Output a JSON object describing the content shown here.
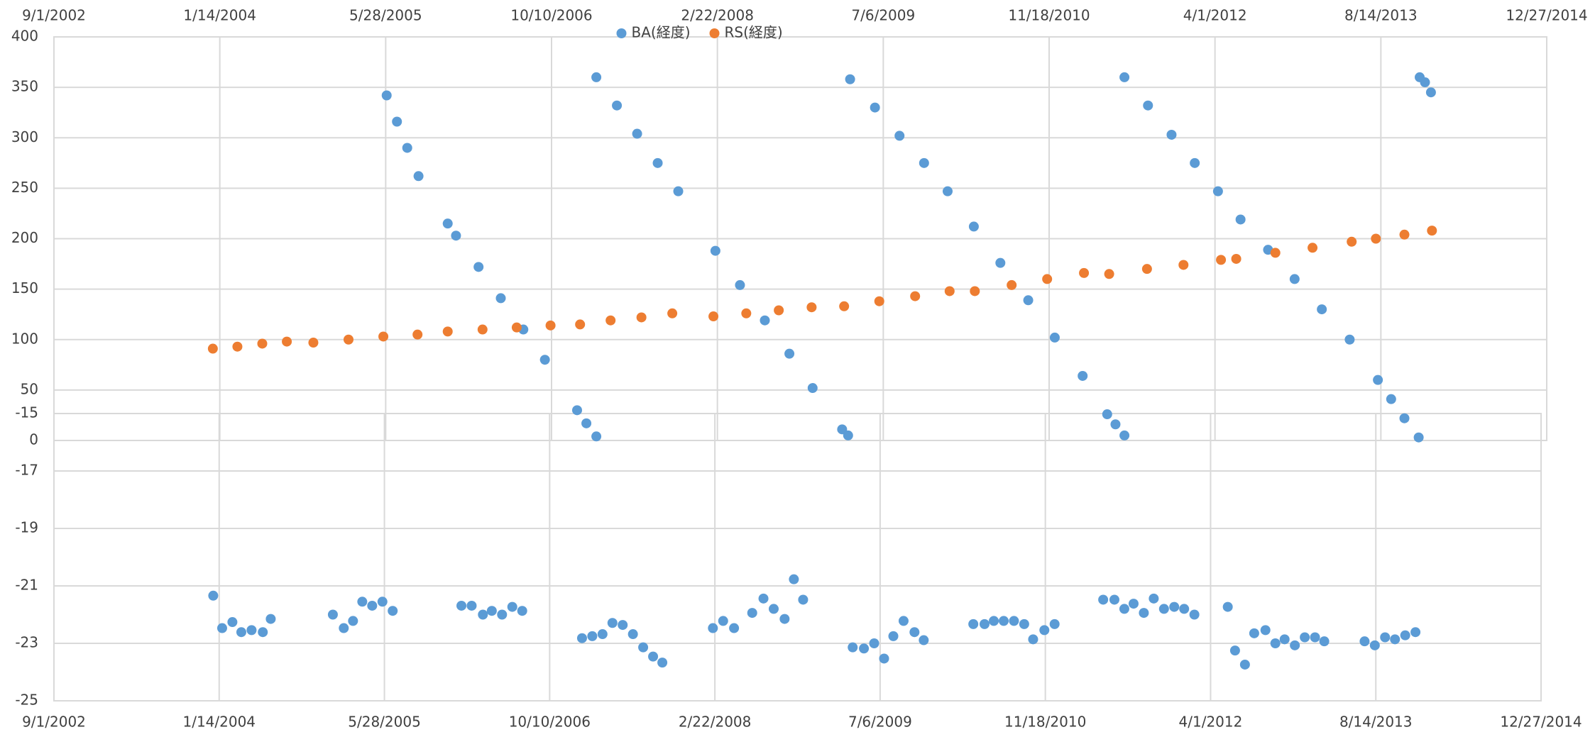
{
  "chart_data": [
    {
      "type": "scatter",
      "xlim": [
        "2002-09-01",
        "2014-12-27"
      ],
      "xticks": [
        {
          "value": "2002-09-01",
          "label": "9/1/2002"
        },
        {
          "value": "2004-01-14",
          "label": "1/14/2004"
        },
        {
          "value": "2005-05-28",
          "label": "5/28/2005"
        },
        {
          "value": "2006-10-10",
          "label": "10/10/2006"
        },
        {
          "value": "2008-02-22",
          "label": "2/22/2008"
        },
        {
          "value": "2009-07-06",
          "label": "7/6/2009"
        },
        {
          "value": "2010-11-18",
          "label": "11/18/2010"
        },
        {
          "value": "2012-04-01",
          "label": "4/1/2012"
        },
        {
          "value": "2013-08-14",
          "label": "8/14/2013"
        },
        {
          "value": "2014-12-27",
          "label": "12/27/2014"
        }
      ],
      "ylim": [
        0,
        400
      ],
      "yticks": [
        0,
        50,
        100,
        150,
        200,
        250,
        300,
        350,
        400
      ],
      "grid": true,
      "legend": "top",
      "series": [
        {
          "name": "BA(経度)",
          "color": "#5b9bd5",
          "x": [
            "2005-05-31",
            "2005-07-01",
            "2005-08-01",
            "2005-09-04",
            "2005-12-01",
            "2005-12-26",
            "2006-03-04",
            "2006-05-10",
            "2006-07-17",
            "2006-09-20",
            "2006-12-26",
            "2007-01-23",
            "2007-02-22",
            "2007-02-22",
            "2007-04-25",
            "2007-06-25",
            "2007-08-26",
            "2007-10-27",
            "2008-02-16",
            "2008-04-30",
            "2008-07-14",
            "2008-09-26",
            "2008-12-05",
            "2009-03-04",
            "2009-03-22",
            "2009-03-28",
            "2009-06-11",
            "2009-08-24",
            "2009-11-06",
            "2010-01-16",
            "2010-04-05",
            "2010-06-24",
            "2010-09-16",
            "2010-12-05",
            "2011-02-27",
            "2011-05-12",
            "2011-06-06",
            "2011-07-03",
            "2011-07-03",
            "2011-09-12",
            "2011-11-22",
            "2012-01-31",
            "2012-04-10",
            "2012-06-17",
            "2012-09-08",
            "2012-11-27",
            "2013-02-17",
            "2013-05-12",
            "2013-08-05",
            "2013-09-14",
            "2013-10-24",
            "2013-12-06",
            "2013-12-09",
            "2013-12-25",
            "2014-01-12"
          ],
          "values": [
            342,
            316,
            290,
            262,
            215,
            203,
            172,
            141,
            110,
            80,
            30,
            17,
            4,
            360,
            332,
            304,
            275,
            247,
            188,
            154,
            119,
            86,
            52,
            11,
            5,
            358,
            330,
            302,
            275,
            247,
            212,
            176,
            139,
            102,
            64,
            26,
            16,
            5,
            360,
            332,
            303,
            275,
            247,
            219,
            189,
            160,
            130,
            100,
            60,
            41,
            22,
            3,
            360,
            355,
            345
          ]
        },
        {
          "name": "RS(経度)",
          "color": "#ed7d31",
          "x": [
            "2003-12-24",
            "2004-03-07",
            "2004-05-21",
            "2004-08-03",
            "2004-10-22",
            "2005-02-05",
            "2005-05-21",
            "2005-09-01",
            "2005-12-01",
            "2006-03-16",
            "2006-06-27",
            "2006-10-07",
            "2007-01-04",
            "2007-04-06",
            "2007-07-08",
            "2007-10-09",
            "2008-02-10",
            "2008-05-19",
            "2008-08-25",
            "2008-12-02",
            "2009-03-10",
            "2009-06-24",
            "2009-10-10",
            "2010-01-22",
            "2010-04-08",
            "2010-07-28",
            "2010-11-12",
            "2011-03-03",
            "2011-05-18",
            "2011-09-09",
            "2011-12-28",
            "2012-04-19",
            "2012-06-04",
            "2012-09-30",
            "2013-01-20",
            "2013-05-18",
            "2013-07-30",
            "2013-10-24",
            "2014-01-15"
          ],
          "values": [
            91,
            93,
            96,
            98,
            97,
            100,
            103,
            105,
            108,
            110,
            112,
            114,
            115,
            119,
            122,
            126,
            123,
            126,
            129,
            132,
            133,
            138,
            143,
            148,
            148,
            154,
            160,
            166,
            165,
            170,
            174,
            179,
            180,
            186,
            191,
            197,
            200,
            204,
            208
          ]
        }
      ]
    },
    {
      "type": "scatter",
      "xlim": [
        "2002-09-01",
        "2014-12-27"
      ],
      "xticks": [
        {
          "value": "2002-09-01",
          "label": "9/1/2002"
        },
        {
          "value": "2004-01-14",
          "label": "1/14/2004"
        },
        {
          "value": "2005-05-28",
          "label": "5/28/2005"
        },
        {
          "value": "2006-10-10",
          "label": "10/10/2006"
        },
        {
          "value": "2008-02-22",
          "label": "2/22/2008"
        },
        {
          "value": "2009-07-06",
          "label": "7/6/2009"
        },
        {
          "value": "2010-11-18",
          "label": "11/18/2010"
        },
        {
          "value": "2012-04-01",
          "label": "4/1/2012"
        },
        {
          "value": "2013-08-14",
          "label": "8/14/2013"
        },
        {
          "value": "2014-12-27",
          "label": "12/27/2014"
        }
      ],
      "ylim": [
        -25,
        -15
      ],
      "yticks": [
        -25,
        -23,
        -21,
        -19,
        -17,
        -15
      ],
      "grid": true,
      "series": [
        {
          "color": "#5b9bd5",
          "x": [
            "2003-12-27",
            "2004-01-23",
            "2004-02-23",
            "2004-03-21",
            "2004-04-21",
            "2004-05-25",
            "2004-06-18",
            "2004-12-23",
            "2005-01-25",
            "2005-02-22",
            "2005-03-22",
            "2005-04-21",
            "2005-05-22",
            "2005-06-22",
            "2006-01-16",
            "2006-02-16",
            "2006-03-22",
            "2006-04-18",
            "2006-05-19",
            "2006-06-19",
            "2006-07-19",
            "2007-01-16",
            "2007-02-16",
            "2007-03-19",
            "2007-04-18",
            "2007-05-19",
            "2007-06-19",
            "2007-07-20",
            "2007-08-19",
            "2007-09-16",
            "2008-02-16",
            "2008-03-18",
            "2008-04-20",
            "2008-06-14",
            "2008-07-18",
            "2008-08-18",
            "2008-09-20",
            "2008-10-18",
            "2008-11-15",
            "2009-04-14",
            "2009-05-18",
            "2009-06-18",
            "2009-07-18",
            "2009-08-15",
            "2009-09-15",
            "2009-10-18",
            "2009-11-15",
            "2010-04-14",
            "2010-05-18",
            "2010-06-15",
            "2010-07-15",
            "2010-08-15",
            "2010-09-15",
            "2010-10-12",
            "2010-11-15",
            "2010-12-16",
            "2011-05-12",
            "2011-06-15",
            "2011-07-15",
            "2011-08-12",
            "2011-09-12",
            "2011-10-12",
            "2011-11-12",
            "2011-12-13",
            "2012-01-12",
            "2012-02-12",
            "2012-05-23",
            "2012-06-14",
            "2012-07-14",
            "2012-08-11",
            "2012-09-14",
            "2012-10-14",
            "2012-11-11",
            "2012-12-12",
            "2013-01-11",
            "2013-02-11",
            "2013-03-11",
            "2013-07-11",
            "2013-08-11",
            "2013-09-11",
            "2013-10-11",
            "2013-11-11",
            "2013-12-12"
          ],
          "values": [
            -21.34,
            -22.47,
            -22.26,
            -22.61,
            -22.54,
            -22.61,
            -22.15,
            -22.0,
            -22.47,
            -22.22,
            -21.55,
            -21.69,
            -21.55,
            -21.87,
            -21.69,
            -21.69,
            -22.0,
            -21.87,
            -22.0,
            -21.73,
            -21.87,
            -22.82,
            -22.75,
            -22.68,
            -22.29,
            -22.36,
            -22.68,
            -23.14,
            -23.46,
            -23.67,
            -22.47,
            -22.22,
            -22.47,
            -21.94,
            -21.44,
            -21.8,
            -22.15,
            -20.77,
            -21.48,
            -23.14,
            -23.18,
            -23.0,
            -23.53,
            -22.75,
            -22.22,
            -22.61,
            -22.89,
            -22.33,
            -22.33,
            -22.22,
            -22.22,
            -22.22,
            -22.33,
            -22.86,
            -22.54,
            -22.33,
            -21.48,
            -21.48,
            -21.8,
            -21.62,
            -21.94,
            -21.44,
            -21.8,
            -21.73,
            -21.8,
            -22.0,
            -21.73,
            -23.25,
            -23.74,
            -22.65,
            -22.54,
            -23.0,
            -22.86,
            -23.07,
            -22.79,
            -22.79,
            -22.93,
            -22.93,
            -23.07,
            -22.79,
            -22.86,
            -22.72,
            -22.61
          ]
        }
      ]
    }
  ]
}
